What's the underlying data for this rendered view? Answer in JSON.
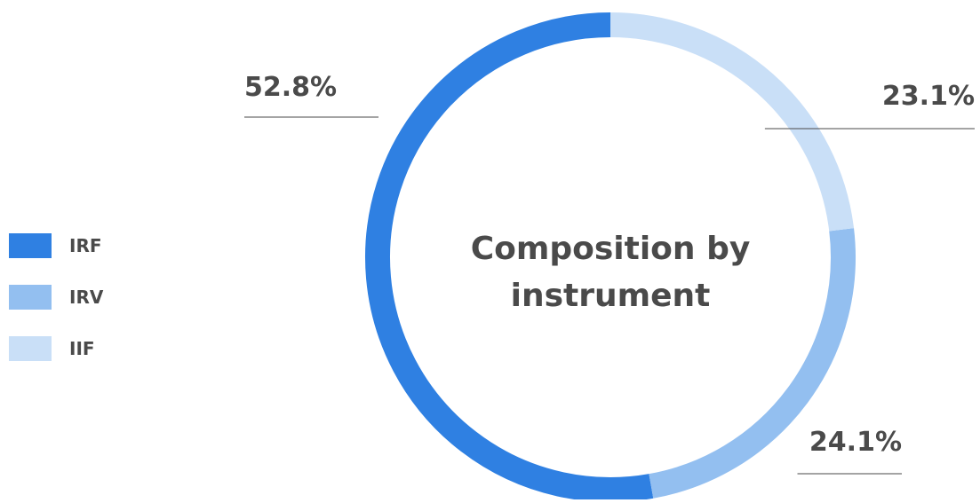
{
  "chart_data": {
    "type": "pie",
    "style": "donut",
    "title": "Composition by instrument",
    "categories": [
      "IRF",
      "IRV",
      "IIF"
    ],
    "values": [
      52.8,
      24.1,
      23.1
    ],
    "labels": [
      "52.8%",
      "24.1%",
      "23.1%"
    ],
    "colors": [
      "#2f80e2",
      "#93bff0",
      "#c9dff7"
    ],
    "legend": "left",
    "start_angle": "top",
    "direction": "counterclockwise"
  }
}
